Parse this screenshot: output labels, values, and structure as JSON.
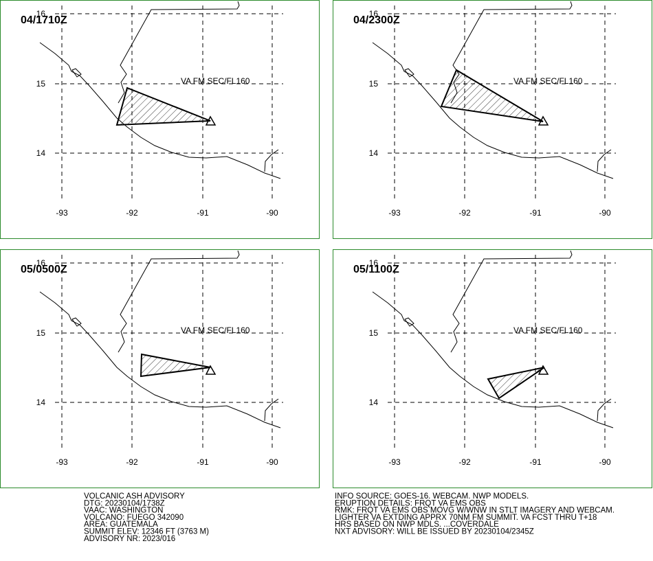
{
  "panels": [
    {
      "time": "04/1710Z",
      "label": "VA FM SEC/FL160"
    },
    {
      "time": "04/2300Z",
      "label": "VA FM SEC/FL160"
    },
    {
      "time": "05/0500Z",
      "label": "VA FM SEC/FL160"
    },
    {
      "time": "05/1100Z",
      "label": "VA FM SEC/FL160"
    }
  ],
  "lon_labels": [
    "-93",
    "-92",
    "-91",
    "-90"
  ],
  "lat_labels": [
    "16",
    "15",
    "14"
  ],
  "advisory_left": [
    "VOLCANIC ASH ADVISORY",
    "DTG: 20230104/1738Z",
    "VAAC: WASHINGTON",
    "VOLCANO: FUEGO 342090",
    "AREA: GUATEMALA",
    "SUMMIT ELEV: 12346 FT (3763 M)",
    "ADVISORY NR: 2023/016"
  ],
  "advisory_right": [
    "INFO SOURCE: GOES-16. WEBCAM. NWP MODELS.",
    "ERUPTION DETAILS: FRQT VA EMS OBS",
    "RMK: FRQT VA EMS OBS MOVG W/WNW IN STLT IMAGERY AND WEBCAM.",
    "LIGHTER VA EXTDING APPRX 70NM FM SUMMIT. VA FCST THRU T+18",
    "HRS BASED ON NWP MDLS. ...COVERDALE",
    "NXT ADVISORY: WILL BE ISSUED BY 20230104/2345Z"
  ]
}
